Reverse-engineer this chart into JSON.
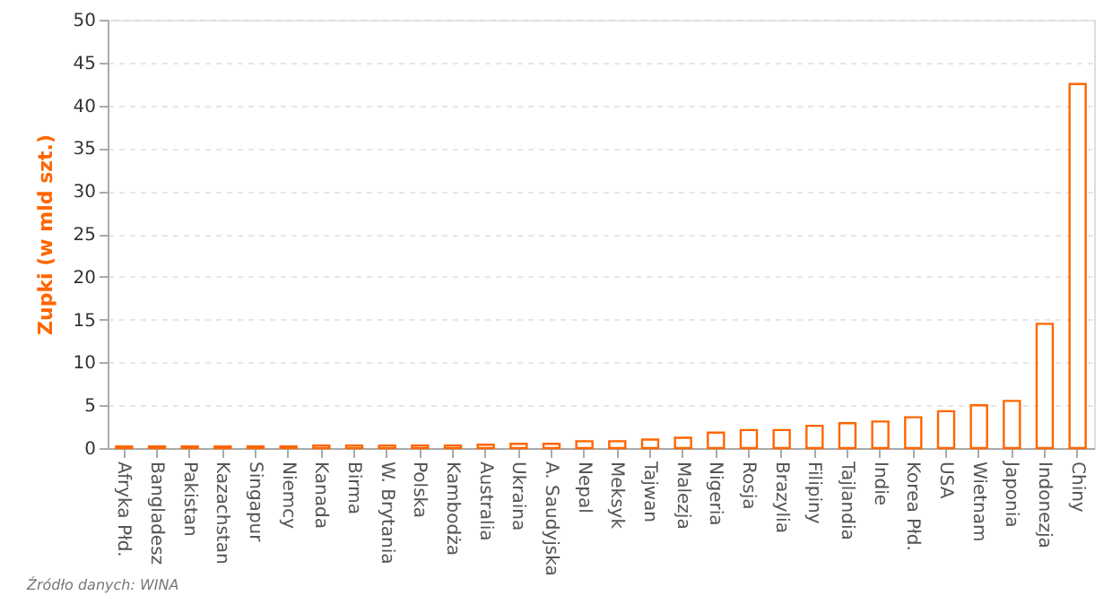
{
  "chart_data": {
    "type": "bar",
    "ylabel": "Zupki (w mld szt.)",
    "categories": [
      "Afryka Płd.",
      "Bangladesz",
      "Pakistan",
      "Kazachstan",
      "Singapur",
      "Niemcy",
      "Kanada",
      "Birma",
      "W. Brytania",
      "Polska",
      "Kambodża",
      "Australia",
      "Ukraina",
      "A. Saudyjska",
      "Nepal",
      "Meksyk",
      "Tajwan",
      "Malezja",
      "Nigeria",
      "Rosja",
      "Brazylia",
      "Filipiny",
      "Tajlandia",
      "Indie",
      "Korea Płd.",
      "USA",
      "Wietnam",
      "Japonia",
      "Indonezja",
      "Chiny"
    ],
    "values": [
      0.2,
      0.2,
      0.2,
      0.2,
      0.2,
      0.2,
      0.3,
      0.3,
      0.3,
      0.3,
      0.3,
      0.4,
      0.5,
      0.5,
      0.8,
      0.8,
      1.0,
      1.2,
      1.8,
      2.1,
      2.1,
      2.6,
      2.9,
      3.1,
      3.6,
      4.3,
      5.0,
      5.5,
      14.5,
      42.5
    ],
    "color": "#ff6600",
    "ylim": [
      0,
      50
    ],
    "yticks": [
      0,
      5,
      10,
      15,
      20,
      25,
      30,
      35,
      40,
      45,
      50
    ],
    "grid": "y",
    "annotations": [
      "Źródło danych: WINA"
    ]
  }
}
